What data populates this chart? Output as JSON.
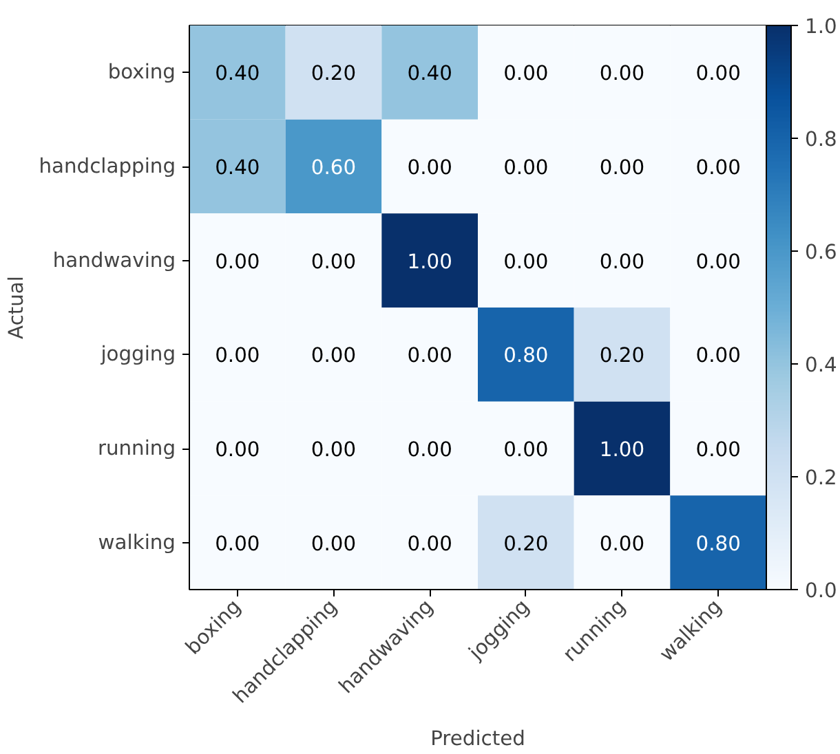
{
  "chart_data": {
    "type": "heatmap",
    "xlabel": "Predicted",
    "ylabel": "Actual",
    "categories": [
      "boxing",
      "handclapping",
      "handwaving",
      "jogging",
      "running",
      "walking"
    ],
    "y_categories": [
      "boxing",
      "handclapping",
      "handwaving",
      "jogging",
      "running",
      "walking"
    ],
    "cells": [
      [
        0.4,
        0.2,
        0.4,
        0.0,
        0.0,
        0.0
      ],
      [
        0.4,
        0.6,
        0.0,
        0.0,
        0.0,
        0.0
      ],
      [
        0.0,
        0.0,
        1.0,
        0.0,
        0.0,
        0.0
      ],
      [
        0.0,
        0.0,
        0.0,
        0.8,
        0.2,
        0.0
      ],
      [
        0.0,
        0.0,
        0.0,
        0.0,
        1.0,
        0.0
      ],
      [
        0.0,
        0.0,
        0.0,
        0.2,
        0.0,
        0.8
      ]
    ],
    "cell_labels": [
      [
        "0.40",
        "0.20",
        "0.40",
        "0.00",
        "0.00",
        "0.00"
      ],
      [
        "0.40",
        "0.60",
        "0.00",
        "0.00",
        "0.00",
        "0.00"
      ],
      [
        "0.00",
        "0.00",
        "1.00",
        "0.00",
        "0.00",
        "0.00"
      ],
      [
        "0.00",
        "0.00",
        "0.00",
        "0.80",
        "0.20",
        "0.00"
      ],
      [
        "0.00",
        "0.00",
        "0.00",
        "0.00",
        "1.00",
        "0.00"
      ],
      [
        "0.00",
        "0.00",
        "0.00",
        "0.20",
        "0.00",
        "0.80"
      ]
    ],
    "clim": [
      0.0,
      1.0
    ],
    "cticks": [
      {
        "value": 0.0,
        "label": "0.0"
      },
      {
        "value": 0.2,
        "label": "0.2"
      },
      {
        "value": 0.4,
        "label": "0.4"
      },
      {
        "value": 0.6,
        "label": "0.6"
      },
      {
        "value": 0.8,
        "label": "0.8"
      },
      {
        "value": 1.0,
        "label": "1.0"
      }
    ]
  }
}
